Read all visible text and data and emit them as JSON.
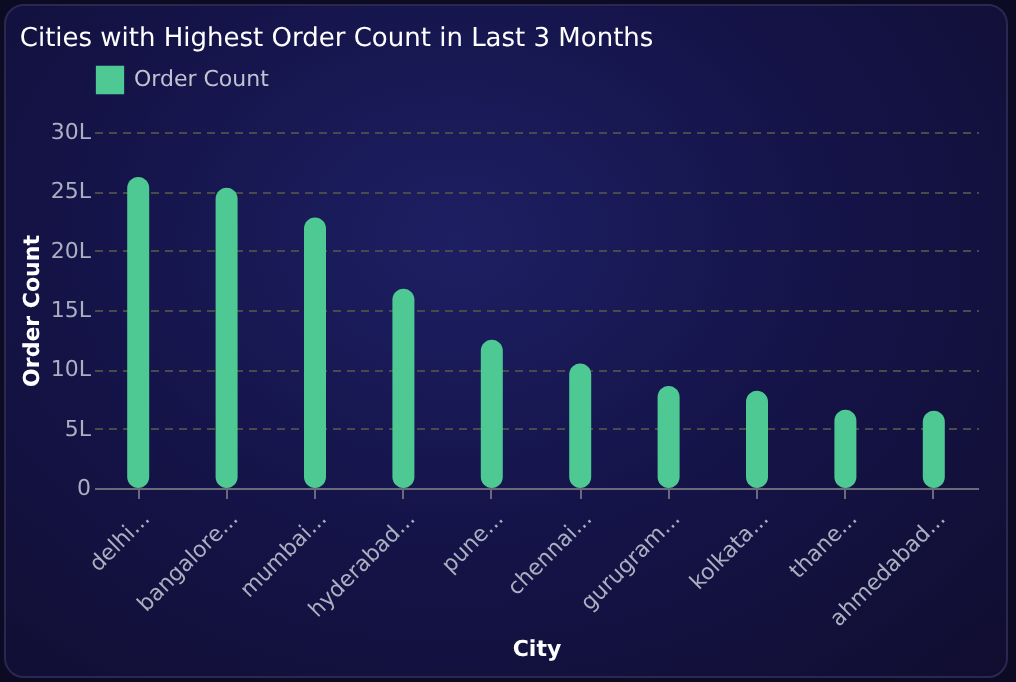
{
  "chart_data": {
    "type": "bar",
    "title": "Cities with Highest Order Count in Last 3 Months",
    "xlabel": "City",
    "ylabel": "Order Count",
    "categories": [
      "delhi...",
      "bangalore...",
      "mumbai...",
      "hyderabad...",
      "pune...",
      "chennai...",
      "gurugram...",
      "kolkata...",
      "thane...",
      "ahmedabad..."
    ],
    "series": [
      {
        "name": "Order Count",
        "color": "#4fc993",
        "values": [
          26.2,
          25.3,
          22.8,
          16.8,
          12.5,
          10.5,
          8.6,
          8.2,
          6.6,
          6.5
        ]
      }
    ],
    "ylim": [
      0,
      30
    ],
    "yticks": [
      0,
      {
        "value": 5,
        "label": "5L"
      },
      {
        "value": 10,
        "label": "10L"
      },
      {
        "value": 15,
        "label": "15L"
      },
      {
        "value": 20,
        "label": "20L"
      },
      {
        "value": 25,
        "label": "25L"
      },
      {
        "value": 30,
        "label": "30L"
      }
    ],
    "grid": "y",
    "legend": "top"
  }
}
